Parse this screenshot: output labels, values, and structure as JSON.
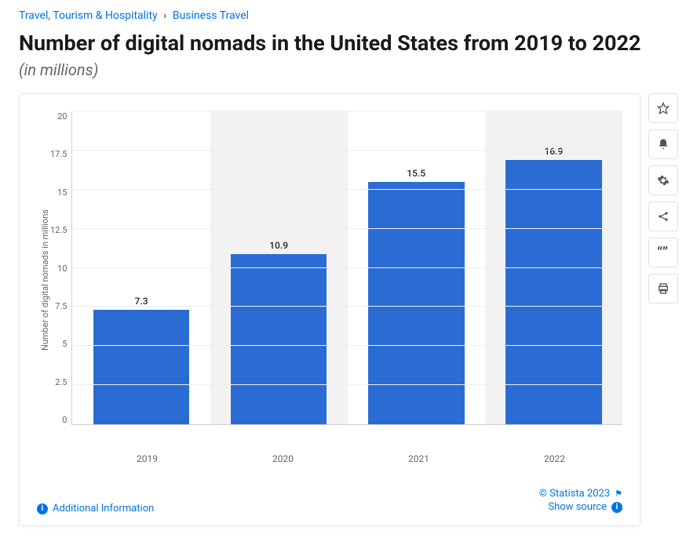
{
  "breadcrumb": {
    "parent": "Travel, Tourism & Hospitality",
    "sep": "›",
    "child": "Business Travel"
  },
  "title": "Number of digital nomads in the United States from 2019 to 2022",
  "subtitle": "(in millions)",
  "chart": {
    "type": "bar",
    "ylabel": "Number of digital nomads in millions",
    "ylim": [
      0,
      20
    ],
    "ytick_step": 2.5,
    "yticks": [
      "20",
      "17.5",
      "15",
      "12.5",
      "10",
      "7.5",
      "5",
      "2.5",
      "0"
    ],
    "categories": [
      "2019",
      "2020",
      "2021",
      "2022"
    ],
    "values": [
      7.3,
      10.9,
      15.5,
      16.9
    ],
    "value_labels": [
      "7.3",
      "10.9",
      "15.5",
      "16.9"
    ],
    "bar_color": "#2b6cd4",
    "background_color": "#ffffff",
    "band_color": "#f2f2f2",
    "grid_color": "#eeeeee",
    "axis_color": "#d0d0d0",
    "bar_width": 0.7,
    "label_fontsize": 12,
    "ytick_fontsize": 11,
    "title_fontsize": 27
  },
  "side_buttons": {
    "star": "star-icon",
    "bell": "bell-icon",
    "gear": "gear-icon",
    "share": "share-icon",
    "quote": "quote-icon",
    "print": "print-icon"
  },
  "footer": {
    "additional_info": "Additional Information",
    "copyright": "© Statista 2023",
    "show_source": "Show source"
  },
  "colors": {
    "link": "#0073e6",
    "text": "#1a1a1a",
    "subtext": "#666666"
  }
}
